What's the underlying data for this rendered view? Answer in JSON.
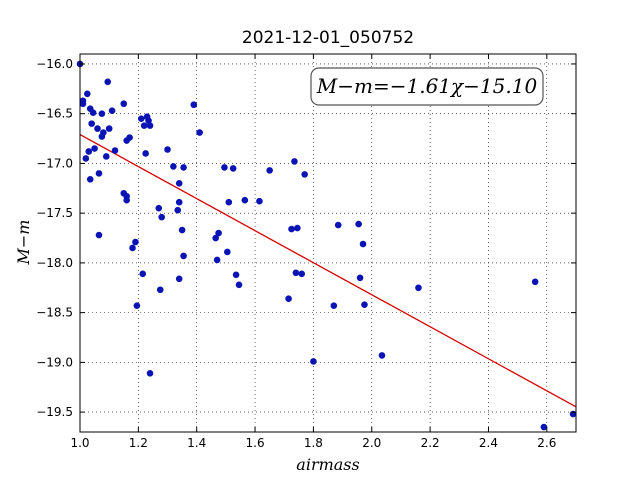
{
  "chart_data": {
    "type": "scatter",
    "title": "2021-12-01_050752",
    "xlabel": "airmass",
    "ylabel": "M−m",
    "xlim": [
      1.0,
      2.7
    ],
    "ylim": [
      -19.7,
      -15.9
    ],
    "invert_y": true,
    "x_ticks": [
      1.0,
      1.2,
      1.4,
      1.6,
      1.8,
      2.0,
      2.2,
      2.4,
      2.6
    ],
    "x_tick_labels": [
      "1.0",
      "1.2",
      "1.4",
      "1.6",
      "1.8",
      "2.0",
      "2.2",
      "2.4",
      "2.6"
    ],
    "y_ticks": [
      -16.0,
      -16.5,
      -17.0,
      -17.5,
      -18.0,
      -18.5,
      -19.0,
      -19.5
    ],
    "y_tick_labels": [
      "−16.0",
      "−16.5",
      "−17.0",
      "−17.5",
      "−18.0",
      "−18.5",
      "−19.0",
      "−19.5"
    ],
    "grid": true,
    "annotation": "M−m=−1.61χ−15.10",
    "fit": {
      "slope": -1.61,
      "intercept": -15.1,
      "x_range": [
        1.0,
        2.7
      ],
      "color": "#d40000"
    },
    "marker_color": "#0a14b4",
    "points": [
      [
        1.0,
        -16.0
      ],
      [
        1.01,
        -16.37
      ],
      [
        1.01,
        -16.4
      ],
      [
        1.02,
        -16.95
      ],
      [
        1.025,
        -16.3
      ],
      [
        1.03,
        -16.88
      ],
      [
        1.035,
        -17.16
      ],
      [
        1.035,
        -16.45
      ],
      [
        1.04,
        -16.6
      ],
      [
        1.045,
        -16.49
      ],
      [
        1.05,
        -16.85
      ],
      [
        1.06,
        -16.65
      ],
      [
        1.065,
        -17.1
      ],
      [
        1.065,
        -17.72
      ],
      [
        1.075,
        -16.5
      ],
      [
        1.075,
        -16.73
      ],
      [
        1.08,
        -16.69
      ],
      [
        1.09,
        -16.93
      ],
      [
        1.095,
        -16.18
      ],
      [
        1.1,
        -16.65
      ],
      [
        1.11,
        -16.47
      ],
      [
        1.12,
        -16.87
      ],
      [
        1.15,
        -16.4
      ],
      [
        1.15,
        -17.3
      ],
      [
        1.16,
        -16.77
      ],
      [
        1.16,
        -17.33
      ],
      [
        1.16,
        -17.37
      ],
      [
        1.17,
        -16.74
      ],
      [
        1.18,
        -17.85
      ],
      [
        1.19,
        -17.79
      ],
      [
        1.195,
        -18.43
      ],
      [
        1.21,
        -16.55
      ],
      [
        1.215,
        -18.11
      ],
      [
        1.22,
        -16.62
      ],
      [
        1.225,
        -16.9
      ],
      [
        1.23,
        -16.53
      ],
      [
        1.235,
        -16.57
      ],
      [
        1.24,
        -16.62
      ],
      [
        1.24,
        -19.11
      ],
      [
        1.27,
        -17.45
      ],
      [
        1.275,
        -18.27
      ],
      [
        1.28,
        -17.54
      ],
      [
        1.3,
        -16.86
      ],
      [
        1.32,
        -17.03
      ],
      [
        1.335,
        -17.47
      ],
      [
        1.34,
        -17.2
      ],
      [
        1.34,
        -17.39
      ],
      [
        1.34,
        -18.16
      ],
      [
        1.35,
        -17.67
      ],
      [
        1.355,
        -17.04
      ],
      [
        1.355,
        -17.93
      ],
      [
        1.39,
        -16.41
      ],
      [
        1.41,
        -16.69
      ],
      [
        1.465,
        -17.75
      ],
      [
        1.47,
        -17.97
      ],
      [
        1.475,
        -17.7
      ],
      [
        1.495,
        -17.04
      ],
      [
        1.505,
        -17.89
      ],
      [
        1.51,
        -17.39
      ],
      [
        1.525,
        -17.05
      ],
      [
        1.535,
        -18.12
      ],
      [
        1.545,
        -18.22
      ],
      [
        1.565,
        -17.37
      ],
      [
        1.615,
        -17.38
      ],
      [
        1.65,
        -17.07
      ],
      [
        1.715,
        -18.36
      ],
      [
        1.725,
        -17.66
      ],
      [
        1.735,
        -16.98
      ],
      [
        1.74,
        -18.1
      ],
      [
        1.745,
        -17.65
      ],
      [
        1.76,
        -18.11
      ],
      [
        1.77,
        -17.11
      ],
      [
        1.8,
        -18.99
      ],
      [
        1.87,
        -18.43
      ],
      [
        1.885,
        -17.62
      ],
      [
        1.955,
        -17.61
      ],
      [
        1.96,
        -18.15
      ],
      [
        1.97,
        -17.81
      ],
      [
        1.975,
        -18.42
      ],
      [
        2.035,
        -18.93
      ],
      [
        2.16,
        -18.25
      ],
      [
        2.56,
        -18.19
      ],
      [
        2.59,
        -19.65
      ],
      [
        2.69,
        -19.52
      ]
    ]
  }
}
